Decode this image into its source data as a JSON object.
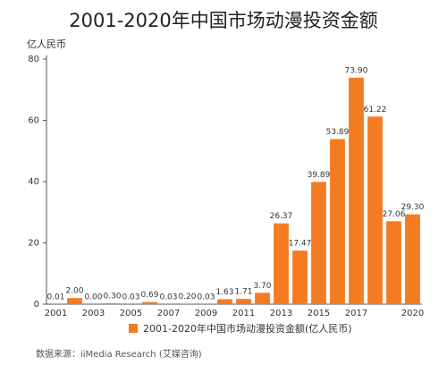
{
  "chart_data": {
    "type": "bar",
    "title": "2001-2020年中国市场动漫投资金额",
    "y_label": "亿人民币",
    "categories": [
      "2001",
      null,
      "2003",
      null,
      "2005",
      null,
      "2007",
      null,
      "2009",
      null,
      "2011",
      null,
      "2013",
      null,
      "2015",
      null,
      "2017",
      null,
      null,
      "2020"
    ],
    "series": [
      {
        "name": "2001-2020年中国市场动漫投资金额(亿人民币)",
        "color": "#f47b20",
        "values": [
          0.01,
          2,
          0,
          0.3,
          0.03,
          0.69,
          0.03,
          0.2,
          0.03,
          1.63,
          1.71,
          3.7,
          26.37,
          17.47,
          39.89,
          53.89,
          73.9,
          61.22,
          27.06,
          29.3
        ],
        "value_labels": [
          "0.01",
          "2.00",
          "0.00",
          "0.30",
          "0.03",
          "0.69",
          "0.03",
          "0.20",
          "0.03",
          "1.63",
          "1.71",
          "3.70",
          "26.37",
          "17.47",
          "39.89",
          "53.89",
          "73.90",
          "61.22",
          "27.06",
          "29.30"
        ]
      }
    ],
    "ylim": [
      0,
      80
    ],
    "yticks": [
      0,
      20,
      40,
      60,
      80
    ],
    "grid": false,
    "source": "数据来源：iiMedia Research (艾媒咨询)"
  }
}
